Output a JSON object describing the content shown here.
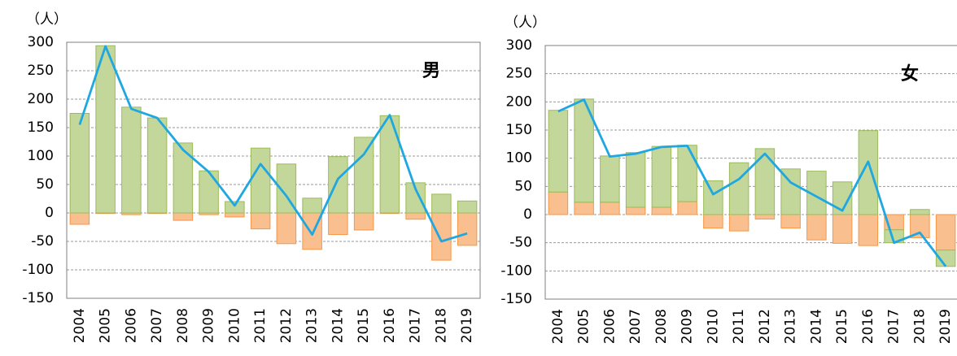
{
  "chart_data": [
    {
      "type": "bar",
      "title": "男",
      "ylabel": "（人）",
      "categories": [
        "2004",
        "2005",
        "2006",
        "2007",
        "2008",
        "2009",
        "2010",
        "2011",
        "2012",
        "2013",
        "2014",
        "2015",
        "2016",
        "2017",
        "2018",
        "2019"
      ],
      "series": [
        {
          "type": "bar",
          "color": "#fabf8f",
          "stroke": "#f79646",
          "values": [
            -20,
            -1,
            -3,
            -1,
            -13,
            -3,
            -7,
            -28,
            -54,
            -64,
            -38,
            -30,
            -1,
            -11,
            -83,
            -57
          ]
        },
        {
          "type": "bar",
          "color": "#c4d79b",
          "stroke": "#9bbb59",
          "values": [
            175,
            294,
            186,
            167,
            123,
            74,
            20,
            114,
            86,
            26,
            99,
            133,
            171,
            53,
            33,
            21
          ]
        },
        {
          "type": "line",
          "color": "#1ea7e1",
          "values": [
            155,
            293,
            183,
            167,
            111,
            72,
            13,
            86,
            30,
            -38,
            60,
            103,
            172,
            42,
            -50,
            -36
          ]
        }
      ],
      "ylim": [
        -150,
        300
      ],
      "yticks": [
        -150,
        -100,
        -50,
        0,
        50,
        100,
        150,
        200,
        250,
        300
      ],
      "grid": true
    },
    {
      "type": "bar",
      "title": "女",
      "ylabel": "（人）",
      "categories": [
        "2004",
        "2005",
        "2006",
        "2007",
        "2008",
        "2009",
        "2010",
        "2011",
        "2012",
        "2013",
        "2014",
        "2015",
        "2016",
        "2017",
        "2018",
        "2019"
      ],
      "series": [
        {
          "type": "bar",
          "color": "#fabf8f",
          "stroke": "#f79646",
          "values": [
            40,
            22,
            22,
            13,
            13,
            23,
            -24,
            -29,
            -8,
            -24,
            -45,
            -51,
            -55,
            -27,
            -41,
            -63
          ]
        },
        {
          "type": "bar",
          "color": "#c4d79b",
          "stroke": "#9bbb59",
          "values": [
            145,
            183,
            82,
            97,
            108,
            100,
            60,
            92,
            117,
            81,
            77,
            58,
            149,
            -23,
            9,
            -29
          ]
        },
        {
          "type": "line",
          "color": "#1ea7e1",
          "values": [
            183,
            204,
            103,
            108,
            120,
            122,
            36,
            63,
            108,
            57,
            32,
            7,
            94,
            -50,
            -32,
            -92
          ]
        }
      ],
      "ylim": [
        -150,
        300
      ],
      "yticks": [
        -150,
        -100,
        -50,
        0,
        50,
        100,
        150,
        200,
        250,
        300
      ],
      "grid": true
    }
  ]
}
